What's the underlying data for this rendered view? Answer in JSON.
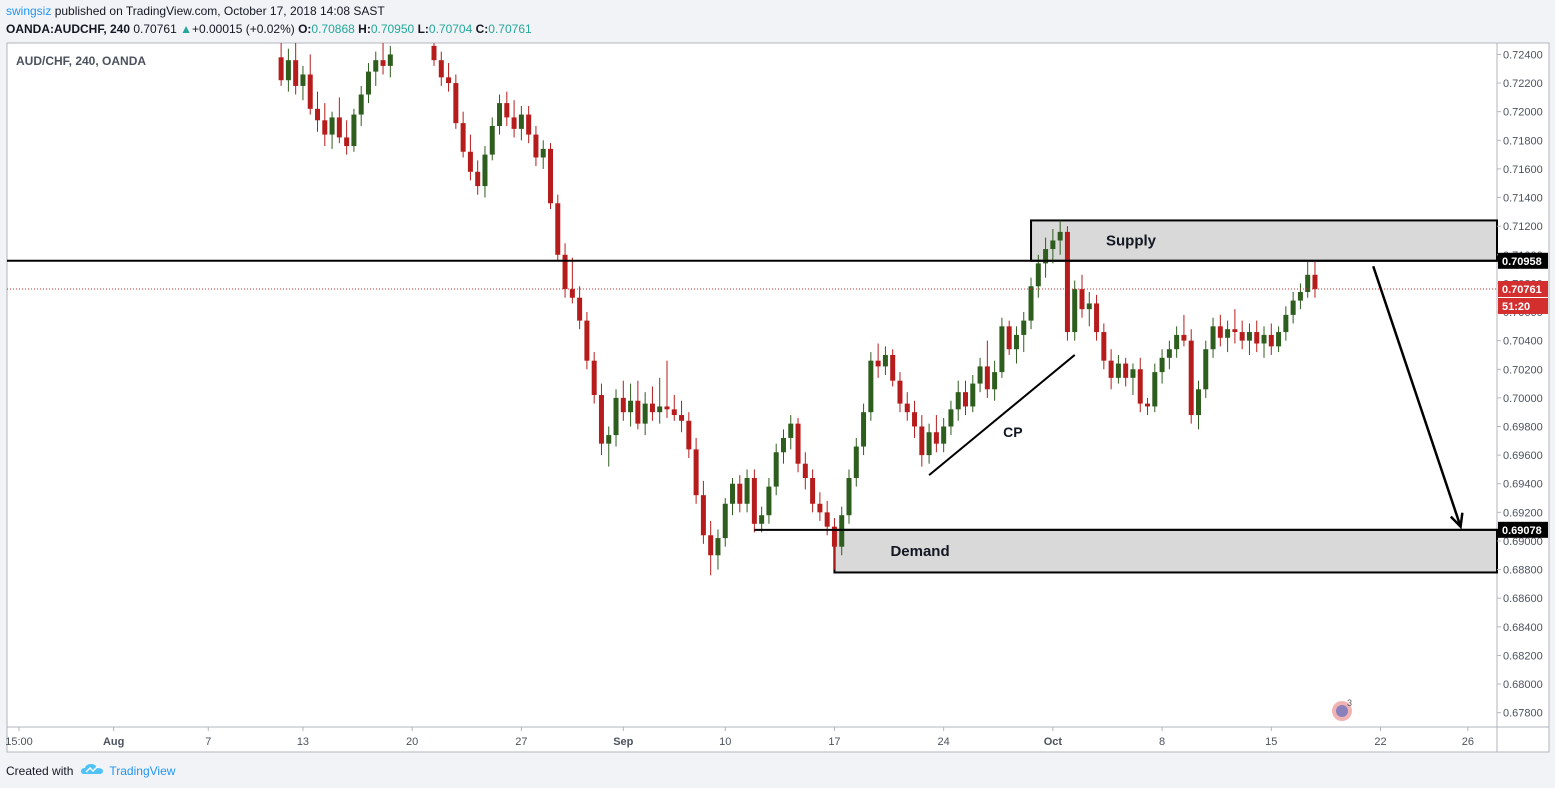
{
  "header": {
    "user": "swingsiz",
    "published_text": " published on TradingView.com, October 17, 2018 14:08 SAST",
    "symbol_line": "OANDA:AUDCHF, 240",
    "last": "0.70761",
    "change_arrow": "▲",
    "change": "+0.00015 (+0.02%)",
    "o_label": "O:",
    "o": "0.70868",
    "h_label": "H:",
    "h": "0.70950",
    "l_label": "L:",
    "l": "0.70704",
    "c_label": "C:",
    "c": "0.70761"
  },
  "footer": {
    "created_with": "Created with",
    "brand": "TradingView"
  },
  "colors": {
    "up": "#2e5e1e",
    "down": "#b71c1c",
    "zone_fill": "#d9d9d9",
    "price_line": "#d32f2f",
    "axis_text": "#4c525e",
    "label_bg_black": "#000000",
    "label_bg_red": "#d32f2f"
  },
  "chart_data": {
    "type": "candlestick",
    "title": "AUD/CHF, 240, OANDA",
    "ylim": [
      0.677,
      0.7248
    ],
    "y_ticks": [
      0.724,
      0.722,
      0.72,
      0.718,
      0.716,
      0.714,
      0.712,
      0.71,
      0.708,
      0.706,
      0.704,
      0.702,
      0.7,
      0.698,
      0.696,
      0.694,
      0.692,
      0.69,
      0.688,
      0.686,
      0.684,
      0.682,
      0.68,
      0.678
    ],
    "y_tick_labels": [
      "0.72400",
      "0.72200",
      "0.72000",
      "0.71800",
      "0.71600",
      "0.71400",
      "0.71200",
      "0.71000",
      "0.70800",
      "0.70600",
      "0.70400",
      "0.70200",
      "0.70000",
      "0.69800",
      "0.69600",
      "0.69400",
      "0.69200",
      "0.69000",
      "0.68800",
      "0.68600",
      "0.68400",
      "0.68200",
      "0.68000",
      "0.67800"
    ],
    "x_ticks": [
      "15:00",
      "Aug",
      "7",
      "13",
      "20",
      "27",
      "Sep",
      "10",
      "17",
      "24",
      "Oct",
      "8",
      "15",
      "22",
      "26"
    ],
    "x_tick_index": [
      0,
      6.5,
      13,
      19.5,
      27,
      34.5,
      41.5,
      48.5,
      56,
      63.5,
      71,
      78.5,
      86,
      93.5,
      99.5
    ],
    "x_range": [
      0,
      101.5
    ],
    "grid": false,
    "price_labels": {
      "level_line": "0.70958",
      "current": "0.70761",
      "countdown": "51:20",
      "demand_line": "0.69078"
    },
    "levels": {
      "resistance": 0.70958,
      "current": 0.70761,
      "demand_top": 0.69078
    },
    "zones": [
      {
        "name": "Supply",
        "from_day": 69.5,
        "to_day": 101.5,
        "low": 0.70958,
        "high": 0.7124
      },
      {
        "name": "Demand",
        "from_day": 56,
        "to_day": 101.5,
        "low": 0.6878,
        "high": 0.69078
      }
    ],
    "annotations": {
      "cp_label": "CP",
      "trendline": {
        "from": [
          62.5,
          0.6946
        ],
        "to": [
          72.5,
          0.703
        ]
      },
      "demand_extension": {
        "from": [
          50.5,
          0.69078
        ]
      },
      "arrow": {
        "from": [
          93,
          0.7092
        ],
        "to": [
          99,
          0.691
        ]
      }
    },
    "candles": [
      {
        "d": 18.0,
        "o": 0.7238,
        "h": 0.7248,
        "l": 0.7218,
        "c": 0.7222
      },
      {
        "d": 18.5,
        "o": 0.7222,
        "h": 0.7244,
        "l": 0.7214,
        "c": 0.7236
      },
      {
        "d": 19.0,
        "o": 0.7236,
        "h": 0.7248,
        "l": 0.7212,
        "c": 0.7218
      },
      {
        "d": 19.5,
        "o": 0.7218,
        "h": 0.7232,
        "l": 0.7208,
        "c": 0.7226
      },
      {
        "d": 20.0,
        "o": 0.7226,
        "h": 0.724,
        "l": 0.7198,
        "c": 0.7202
      },
      {
        "d": 20.5,
        "o": 0.7202,
        "h": 0.7214,
        "l": 0.7186,
        "c": 0.7194
      },
      {
        "d": 21.0,
        "o": 0.7194,
        "h": 0.7206,
        "l": 0.7176,
        "c": 0.7184
      },
      {
        "d": 21.5,
        "o": 0.7184,
        "h": 0.72,
        "l": 0.7174,
        "c": 0.7196
      },
      {
        "d": 22.0,
        "o": 0.7196,
        "h": 0.721,
        "l": 0.7178,
        "c": 0.7182
      },
      {
        "d": 22.5,
        "o": 0.7182,
        "h": 0.7194,
        "l": 0.717,
        "c": 0.7176
      },
      {
        "d": 23.0,
        "o": 0.7176,
        "h": 0.7202,
        "l": 0.7172,
        "c": 0.7198
      },
      {
        "d": 23.5,
        "o": 0.7198,
        "h": 0.7218,
        "l": 0.719,
        "c": 0.7212
      },
      {
        "d": 24.0,
        "o": 0.7212,
        "h": 0.7234,
        "l": 0.7206,
        "c": 0.7228
      },
      {
        "d": 24.5,
        "o": 0.7228,
        "h": 0.7242,
        "l": 0.7218,
        "c": 0.7236
      },
      {
        "d": 25.0,
        "o": 0.7236,
        "h": 0.7248,
        "l": 0.7226,
        "c": 0.7232
      },
      {
        "d": 25.5,
        "o": 0.7232,
        "h": 0.7246,
        "l": 0.7224,
        "c": 0.724
      },
      {
        "d": 28.5,
        "o": 0.7246,
        "h": 0.7248,
        "l": 0.7232,
        "c": 0.7236
      },
      {
        "d": 29.0,
        "o": 0.7236,
        "h": 0.7242,
        "l": 0.7218,
        "c": 0.7224
      },
      {
        "d": 29.5,
        "o": 0.7224,
        "h": 0.7234,
        "l": 0.7214,
        "c": 0.722
      },
      {
        "d": 30.0,
        "o": 0.722,
        "h": 0.7226,
        "l": 0.7188,
        "c": 0.7192
      },
      {
        "d": 30.5,
        "o": 0.7192,
        "h": 0.72,
        "l": 0.7168,
        "c": 0.7172
      },
      {
        "d": 31.0,
        "o": 0.7172,
        "h": 0.7184,
        "l": 0.7152,
        "c": 0.7158
      },
      {
        "d": 31.5,
        "o": 0.7158,
        "h": 0.7166,
        "l": 0.7142,
        "c": 0.7148
      },
      {
        "d": 32.0,
        "o": 0.7148,
        "h": 0.7176,
        "l": 0.714,
        "c": 0.717
      },
      {
        "d": 32.5,
        "o": 0.717,
        "h": 0.7196,
        "l": 0.7166,
        "c": 0.719
      },
      {
        "d": 33.0,
        "o": 0.719,
        "h": 0.7212,
        "l": 0.7184,
        "c": 0.7206
      },
      {
        "d": 33.5,
        "o": 0.7206,
        "h": 0.7214,
        "l": 0.719,
        "c": 0.7196
      },
      {
        "d": 34.0,
        "o": 0.7196,
        "h": 0.7208,
        "l": 0.7182,
        "c": 0.7188
      },
      {
        "d": 34.5,
        "o": 0.7188,
        "h": 0.7204,
        "l": 0.718,
        "c": 0.7198
      },
      {
        "d": 35.0,
        "o": 0.7198,
        "h": 0.7204,
        "l": 0.7178,
        "c": 0.7184
      },
      {
        "d": 35.5,
        "o": 0.7184,
        "h": 0.719,
        "l": 0.7162,
        "c": 0.7168
      },
      {
        "d": 36.0,
        "o": 0.7168,
        "h": 0.718,
        "l": 0.716,
        "c": 0.7174
      },
      {
        "d": 36.5,
        "o": 0.7174,
        "h": 0.7178,
        "l": 0.7132,
        "c": 0.7136
      },
      {
        "d": 37.0,
        "o": 0.7136,
        "h": 0.7142,
        "l": 0.7096,
        "c": 0.71
      },
      {
        "d": 37.5,
        "o": 0.71,
        "h": 0.7108,
        "l": 0.707,
        "c": 0.7076
      },
      {
        "d": 38.0,
        "o": 0.7076,
        "h": 0.7098,
        "l": 0.7066,
        "c": 0.707
      },
      {
        "d": 38.5,
        "o": 0.707,
        "h": 0.7078,
        "l": 0.7048,
        "c": 0.7054
      },
      {
        "d": 39.0,
        "o": 0.7054,
        "h": 0.706,
        "l": 0.702,
        "c": 0.7026
      },
      {
        "d": 39.5,
        "o": 0.7026,
        "h": 0.7032,
        "l": 0.6996,
        "c": 0.7002
      },
      {
        "d": 40.0,
        "o": 0.7002,
        "h": 0.701,
        "l": 0.696,
        "c": 0.6968
      },
      {
        "d": 40.5,
        "o": 0.6968,
        "h": 0.698,
        "l": 0.6952,
        "c": 0.6974
      },
      {
        "d": 41.0,
        "o": 0.6974,
        "h": 0.7006,
        "l": 0.6966,
        "c": 0.7
      },
      {
        "d": 41.5,
        "o": 0.7,
        "h": 0.7012,
        "l": 0.6984,
        "c": 0.699
      },
      {
        "d": 42.0,
        "o": 0.699,
        "h": 0.701,
        "l": 0.698,
        "c": 0.6998
      },
      {
        "d": 42.5,
        "o": 0.6998,
        "h": 0.7012,
        "l": 0.6978,
        "c": 0.6982
      },
      {
        "d": 43.0,
        "o": 0.6982,
        "h": 0.7004,
        "l": 0.6974,
        "c": 0.6996
      },
      {
        "d": 43.5,
        "o": 0.6996,
        "h": 0.7008,
        "l": 0.6984,
        "c": 0.699
      },
      {
        "d": 44.0,
        "o": 0.699,
        "h": 0.7014,
        "l": 0.6982,
        "c": 0.6994
      },
      {
        "d": 44.5,
        "o": 0.6994,
        "h": 0.7026,
        "l": 0.6986,
        "c": 0.6992
      },
      {
        "d": 45.0,
        "o": 0.6992,
        "h": 0.7002,
        "l": 0.6984,
        "c": 0.6988
      },
      {
        "d": 45.5,
        "o": 0.6988,
        "h": 0.6998,
        "l": 0.6976,
        "c": 0.6984
      },
      {
        "d": 46.0,
        "o": 0.6984,
        "h": 0.699,
        "l": 0.6958,
        "c": 0.6964
      },
      {
        "d": 46.5,
        "o": 0.6964,
        "h": 0.6972,
        "l": 0.6926,
        "c": 0.6932
      },
      {
        "d": 47.0,
        "o": 0.6932,
        "h": 0.6942,
        "l": 0.6898,
        "c": 0.6904
      },
      {
        "d": 47.5,
        "o": 0.6904,
        "h": 0.6914,
        "l": 0.6876,
        "c": 0.689
      },
      {
        "d": 48.0,
        "o": 0.689,
        "h": 0.6908,
        "l": 0.688,
        "c": 0.6902
      },
      {
        "d": 48.5,
        "o": 0.6902,
        "h": 0.693,
        "l": 0.6896,
        "c": 0.6926
      },
      {
        "d": 49.0,
        "o": 0.6926,
        "h": 0.6944,
        "l": 0.6918,
        "c": 0.694
      },
      {
        "d": 49.5,
        "o": 0.694,
        "h": 0.6946,
        "l": 0.692,
        "c": 0.6926
      },
      {
        "d": 50.0,
        "o": 0.6926,
        "h": 0.695,
        "l": 0.692,
        "c": 0.6944
      },
      {
        "d": 50.5,
        "o": 0.6944,
        "h": 0.695,
        "l": 0.6906,
        "c": 0.6912
      },
      {
        "d": 51.0,
        "o": 0.6912,
        "h": 0.6924,
        "l": 0.6906,
        "c": 0.6918
      },
      {
        "d": 51.5,
        "o": 0.6918,
        "h": 0.6944,
        "l": 0.6912,
        "c": 0.6938
      },
      {
        "d": 52.0,
        "o": 0.6938,
        "h": 0.6968,
        "l": 0.6932,
        "c": 0.6962
      },
      {
        "d": 52.5,
        "o": 0.6962,
        "h": 0.6978,
        "l": 0.6954,
        "c": 0.6972
      },
      {
        "d": 53.0,
        "o": 0.6972,
        "h": 0.6988,
        "l": 0.6964,
        "c": 0.6982
      },
      {
        "d": 53.5,
        "o": 0.6982,
        "h": 0.6986,
        "l": 0.6948,
        "c": 0.6954
      },
      {
        "d": 54.0,
        "o": 0.6954,
        "h": 0.6962,
        "l": 0.6936,
        "c": 0.6944
      },
      {
        "d": 54.5,
        "o": 0.6944,
        "h": 0.695,
        "l": 0.692,
        "c": 0.6926
      },
      {
        "d": 55.0,
        "o": 0.6926,
        "h": 0.6934,
        "l": 0.6914,
        "c": 0.692
      },
      {
        "d": 55.5,
        "o": 0.692,
        "h": 0.6928,
        "l": 0.6904,
        "c": 0.691
      },
      {
        "d": 56.0,
        "o": 0.691,
        "h": 0.6916,
        "l": 0.688,
        "c": 0.6896
      },
      {
        "d": 56.5,
        "o": 0.6896,
        "h": 0.6924,
        "l": 0.689,
        "c": 0.6918
      },
      {
        "d": 57.0,
        "o": 0.6918,
        "h": 0.695,
        "l": 0.6912,
        "c": 0.6944
      },
      {
        "d": 57.5,
        "o": 0.6944,
        "h": 0.6972,
        "l": 0.6938,
        "c": 0.6966
      },
      {
        "d": 58.0,
        "o": 0.6966,
        "h": 0.6996,
        "l": 0.696,
        "c": 0.699
      },
      {
        "d": 58.5,
        "o": 0.699,
        "h": 0.7032,
        "l": 0.6984,
        "c": 0.7026
      },
      {
        "d": 59.0,
        "o": 0.7026,
        "h": 0.7038,
        "l": 0.7014,
        "c": 0.7022
      },
      {
        "d": 59.5,
        "o": 0.7022,
        "h": 0.7036,
        "l": 0.7016,
        "c": 0.703
      },
      {
        "d": 60.0,
        "o": 0.703,
        "h": 0.7034,
        "l": 0.7008,
        "c": 0.7012
      },
      {
        "d": 60.5,
        "o": 0.7012,
        "h": 0.7018,
        "l": 0.699,
        "c": 0.6996
      },
      {
        "d": 61.0,
        "o": 0.6996,
        "h": 0.7004,
        "l": 0.6984,
        "c": 0.699
      },
      {
        "d": 61.5,
        "o": 0.699,
        "h": 0.6998,
        "l": 0.6972,
        "c": 0.698
      },
      {
        "d": 62.0,
        "o": 0.698,
        "h": 0.6988,
        "l": 0.6952,
        "c": 0.696
      },
      {
        "d": 62.5,
        "o": 0.696,
        "h": 0.6982,
        "l": 0.6954,
        "c": 0.6976
      },
      {
        "d": 63.0,
        "o": 0.6976,
        "h": 0.6988,
        "l": 0.6962,
        "c": 0.6968
      },
      {
        "d": 63.5,
        "o": 0.6968,
        "h": 0.6986,
        "l": 0.6962,
        "c": 0.698
      },
      {
        "d": 64.0,
        "o": 0.698,
        "h": 0.6998,
        "l": 0.6974,
        "c": 0.6992
      },
      {
        "d": 64.5,
        "o": 0.6992,
        "h": 0.7012,
        "l": 0.6984,
        "c": 0.7004
      },
      {
        "d": 65.0,
        "o": 0.7004,
        "h": 0.7012,
        "l": 0.6988,
        "c": 0.6994
      },
      {
        "d": 65.5,
        "o": 0.6994,
        "h": 0.7016,
        "l": 0.699,
        "c": 0.701
      },
      {
        "d": 66.0,
        "o": 0.701,
        "h": 0.7028,
        "l": 0.7004,
        "c": 0.7022
      },
      {
        "d": 66.5,
        "o": 0.7022,
        "h": 0.704,
        "l": 0.7,
        "c": 0.7006
      },
      {
        "d": 67.0,
        "o": 0.7006,
        "h": 0.7026,
        "l": 0.6998,
        "c": 0.7018
      },
      {
        "d": 67.5,
        "o": 0.7018,
        "h": 0.7056,
        "l": 0.7014,
        "c": 0.705
      },
      {
        "d": 68.0,
        "o": 0.705,
        "h": 0.7054,
        "l": 0.703,
        "c": 0.7034
      },
      {
        "d": 68.5,
        "o": 0.7034,
        "h": 0.705,
        "l": 0.7024,
        "c": 0.7044
      },
      {
        "d": 69.0,
        "o": 0.7044,
        "h": 0.706,
        "l": 0.7032,
        "c": 0.7054
      },
      {
        "d": 69.5,
        "o": 0.7054,
        "h": 0.7084,
        "l": 0.7048,
        "c": 0.7078
      },
      {
        "d": 70.0,
        "o": 0.7078,
        "h": 0.71,
        "l": 0.707,
        "c": 0.7094
      },
      {
        "d": 70.5,
        "o": 0.7094,
        "h": 0.7112,
        "l": 0.7084,
        "c": 0.7104
      },
      {
        "d": 71.0,
        "o": 0.7104,
        "h": 0.7118,
        "l": 0.7094,
        "c": 0.711
      },
      {
        "d": 71.5,
        "o": 0.711,
        "h": 0.7124,
        "l": 0.71,
        "c": 0.7116
      },
      {
        "d": 72.0,
        "o": 0.7116,
        "h": 0.712,
        "l": 0.704,
        "c": 0.7046
      },
      {
        "d": 72.5,
        "o": 0.7046,
        "h": 0.7082,
        "l": 0.704,
        "c": 0.7076
      },
      {
        "d": 73.0,
        "o": 0.7076,
        "h": 0.7086,
        "l": 0.7056,
        "c": 0.7062
      },
      {
        "d": 73.5,
        "o": 0.7062,
        "h": 0.7074,
        "l": 0.705,
        "c": 0.7066
      },
      {
        "d": 74.0,
        "o": 0.7066,
        "h": 0.7072,
        "l": 0.704,
        "c": 0.7046
      },
      {
        "d": 74.5,
        "o": 0.7046,
        "h": 0.7052,
        "l": 0.702,
        "c": 0.7026
      },
      {
        "d": 75.0,
        "o": 0.7026,
        "h": 0.7034,
        "l": 0.7006,
        "c": 0.7014
      },
      {
        "d": 75.5,
        "o": 0.7014,
        "h": 0.703,
        "l": 0.701,
        "c": 0.7024
      },
      {
        "d": 76.0,
        "o": 0.7024,
        "h": 0.7028,
        "l": 0.7008,
        "c": 0.7014
      },
      {
        "d": 76.5,
        "o": 0.7014,
        "h": 0.7024,
        "l": 0.7002,
        "c": 0.702
      },
      {
        "d": 77.0,
        "o": 0.702,
        "h": 0.7028,
        "l": 0.699,
        "c": 0.6996
      },
      {
        "d": 77.5,
        "o": 0.6996,
        "h": 0.7,
        "l": 0.6988,
        "c": 0.6994
      },
      {
        "d": 78.0,
        "o": 0.6994,
        "h": 0.7024,
        "l": 0.699,
        "c": 0.7018
      },
      {
        "d": 78.5,
        "o": 0.7018,
        "h": 0.7034,
        "l": 0.701,
        "c": 0.7028
      },
      {
        "d": 79.0,
        "o": 0.7028,
        "h": 0.704,
        "l": 0.702,
        "c": 0.7034
      },
      {
        "d": 79.5,
        "o": 0.7034,
        "h": 0.705,
        "l": 0.7028,
        "c": 0.7044
      },
      {
        "d": 80.0,
        "o": 0.7044,
        "h": 0.7058,
        "l": 0.7036,
        "c": 0.704
      },
      {
        "d": 80.5,
        "o": 0.704,
        "h": 0.7048,
        "l": 0.6982,
        "c": 0.6988
      },
      {
        "d": 81.0,
        "o": 0.6988,
        "h": 0.7012,
        "l": 0.6978,
        "c": 0.7006
      },
      {
        "d": 81.5,
        "o": 0.7006,
        "h": 0.704,
        "l": 0.7,
        "c": 0.7034
      },
      {
        "d": 82.0,
        "o": 0.7034,
        "h": 0.7056,
        "l": 0.7028,
        "c": 0.705
      },
      {
        "d": 82.5,
        "o": 0.705,
        "h": 0.7058,
        "l": 0.7036,
        "c": 0.7042
      },
      {
        "d": 83.0,
        "o": 0.7042,
        "h": 0.7054,
        "l": 0.7032,
        "c": 0.7048
      },
      {
        "d": 83.5,
        "o": 0.7048,
        "h": 0.7062,
        "l": 0.7038,
        "c": 0.7046
      },
      {
        "d": 84.0,
        "o": 0.7046,
        "h": 0.7054,
        "l": 0.7034,
        "c": 0.704
      },
      {
        "d": 84.5,
        "o": 0.704,
        "h": 0.7052,
        "l": 0.703,
        "c": 0.7046
      },
      {
        "d": 85.0,
        "o": 0.7046,
        "h": 0.7054,
        "l": 0.7032,
        "c": 0.7038
      },
      {
        "d": 85.5,
        "o": 0.7038,
        "h": 0.705,
        "l": 0.7028,
        "c": 0.7044
      },
      {
        "d": 86.0,
        "o": 0.7044,
        "h": 0.7052,
        "l": 0.703,
        "c": 0.7036
      },
      {
        "d": 86.5,
        "o": 0.7036,
        "h": 0.705,
        "l": 0.7032,
        "c": 0.7046
      },
      {
        "d": 87.0,
        "o": 0.7046,
        "h": 0.7064,
        "l": 0.704,
        "c": 0.7058
      },
      {
        "d": 87.5,
        "o": 0.7058,
        "h": 0.7074,
        "l": 0.7052,
        "c": 0.7068
      },
      {
        "d": 88.0,
        "o": 0.7068,
        "h": 0.708,
        "l": 0.7062,
        "c": 0.7074
      },
      {
        "d": 88.5,
        "o": 0.7074,
        "h": 0.7095,
        "l": 0.707,
        "c": 0.7086
      },
      {
        "d": 89.0,
        "o": 0.7086,
        "h": 0.7095,
        "l": 0.707,
        "c": 0.7076
      }
    ]
  }
}
